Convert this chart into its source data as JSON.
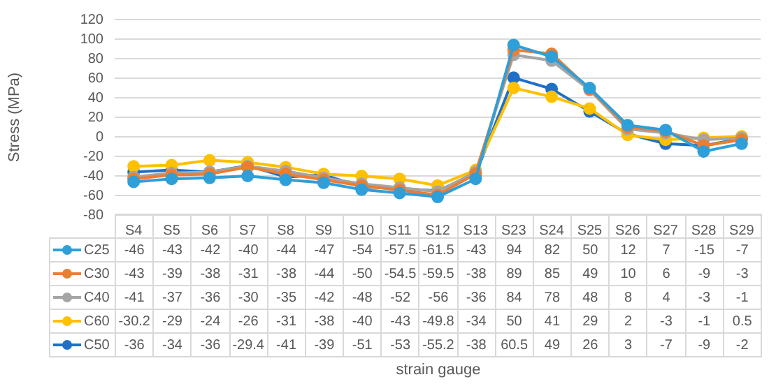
{
  "chart_data": {
    "type": "line",
    "ylabel": "Stress (MPa)",
    "annotations": [
      "strain gauge"
    ],
    "categories": [
      "S4",
      "S5",
      "S6",
      "S7",
      "S8",
      "S9",
      "S10",
      "S11",
      "S12",
      "S13",
      "S23",
      "S24",
      "S25",
      "S26",
      "S27",
      "S28",
      "S29"
    ],
    "series": [
      {
        "name": "C25",
        "color": "#2e9fd9",
        "values": [
          -46,
          -43,
          -42,
          -40,
          -44,
          -47,
          -54,
          -57.5,
          -61.5,
          -43,
          94,
          82,
          50,
          12,
          7,
          -15,
          -7
        ]
      },
      {
        "name": "C30",
        "color": "#ed7d31",
        "values": [
          -43,
          -39,
          -38,
          -31,
          -38,
          -44,
          -50,
          -54.5,
          -59.5,
          -38,
          89,
          85,
          49,
          10,
          6,
          -9,
          -3
        ]
      },
      {
        "name": "C40",
        "color": "#a5a5a5",
        "values": [
          -41,
          -37,
          -36,
          -30,
          -35,
          -42,
          -48,
          -52,
          -56,
          -36,
          84,
          78,
          48,
          8,
          4,
          -3,
          -1
        ]
      },
      {
        "name": "C60",
        "color": "#ffc000",
        "values": [
          -30.2,
          -29,
          -24,
          -26,
          -31,
          -38,
          -40,
          -43,
          -49.8,
          -34,
          50,
          41,
          29,
          2,
          -3,
          -1,
          0.5
        ]
      },
      {
        "name": "C50",
        "color": "#1f70c6",
        "values": [
          -36,
          -34,
          -36,
          -29.4,
          -41,
          -39,
          -51,
          -53,
          -55.2,
          -38,
          60.5,
          49,
          26,
          3,
          -7,
          -9,
          -2
        ]
      }
    ],
    "ylim": [
      -80,
      120
    ],
    "yticks": [
      -80,
      -60,
      -40,
      -20,
      0,
      20,
      40,
      60,
      80,
      100,
      120
    ],
    "grid": "y",
    "marker": "circle",
    "line_style": "solid",
    "legend": "bottom",
    "data_labels": true
  }
}
